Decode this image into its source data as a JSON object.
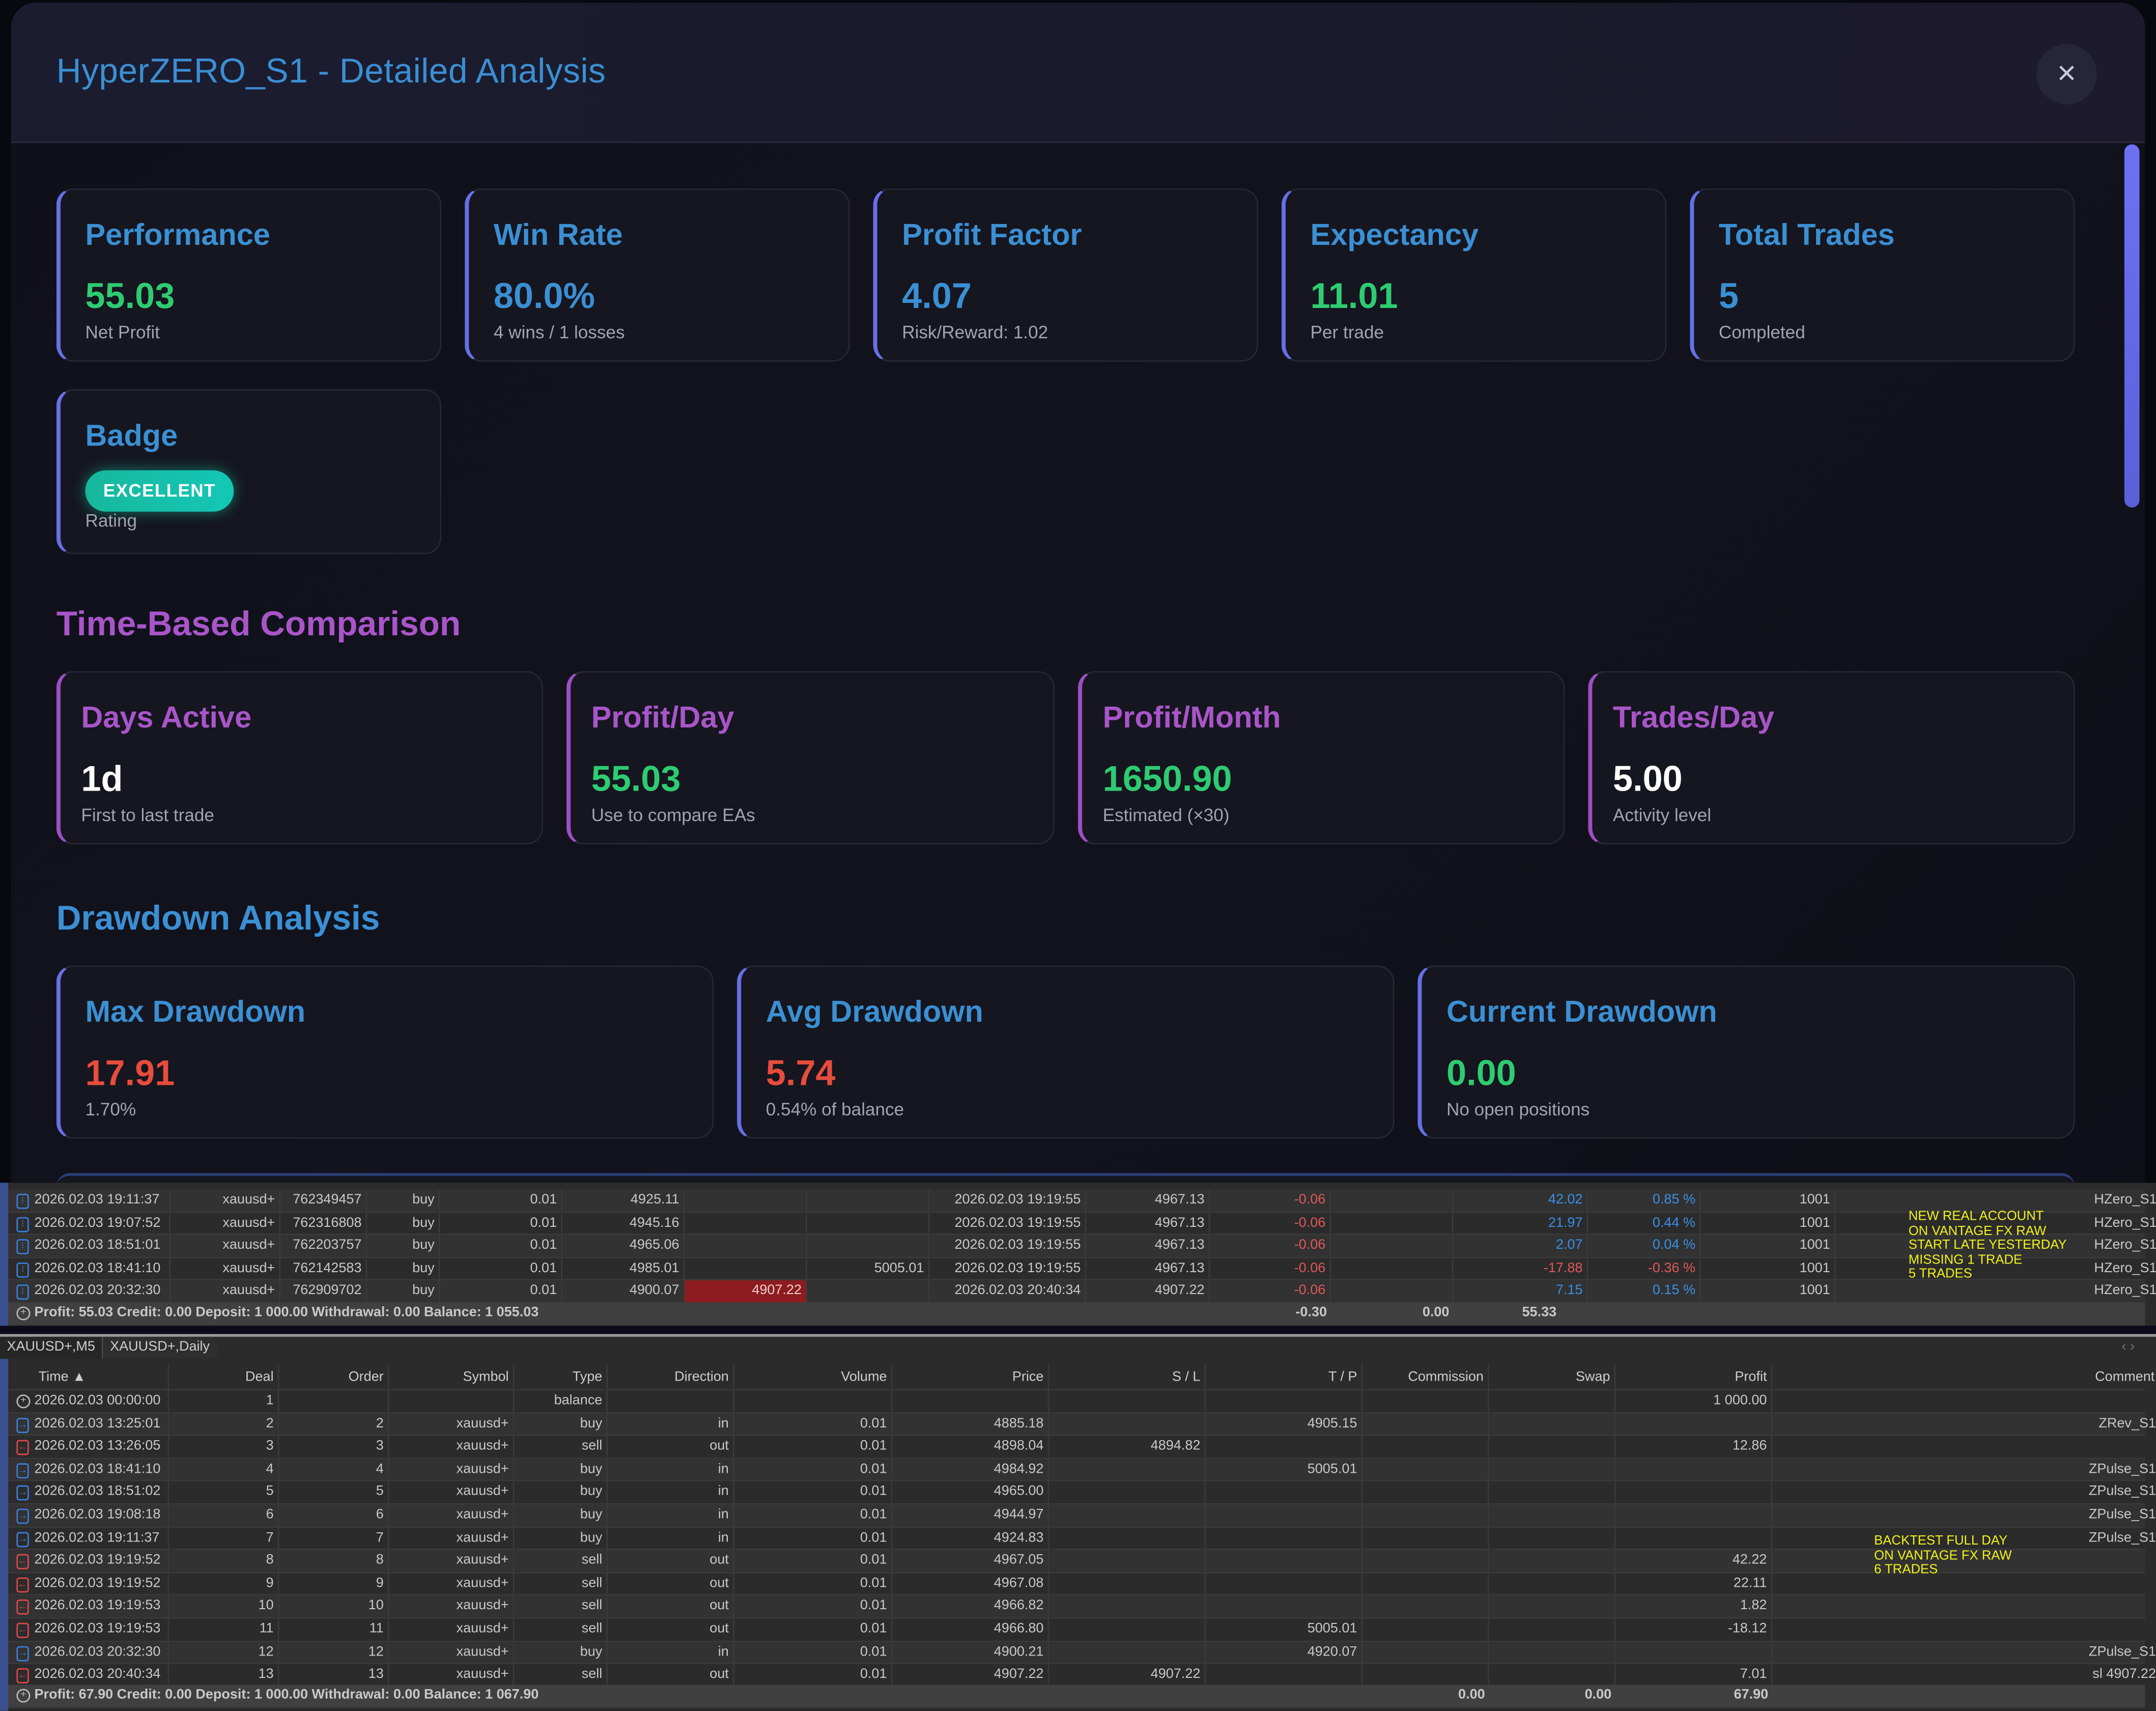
{
  "modal": {
    "title": "HyperZERO_S1 - Detailed Analysis",
    "close_icon": "×",
    "accent_color": "#3b8fd3",
    "section_color_time": "#a955c9",
    "summary_cards": [
      {
        "title": "Performance",
        "value": "55.03",
        "sub": "Net Profit"
      },
      {
        "title": "Win Rate",
        "value": "80.0%",
        "sub": "4 wins / 1 losses"
      },
      {
        "title": "Profit Factor",
        "value": "4.07",
        "sub": "Risk/Reward: 1.02"
      },
      {
        "title": "Expectancy",
        "value": "11.01",
        "sub": "Per trade"
      },
      {
        "title": "Total Trades",
        "value": "5",
        "sub": "Completed"
      }
    ],
    "badge_card": {
      "title": "Badge",
      "badge": "EXCELLENT",
      "sub": "Rating"
    },
    "time_section": {
      "title": "Time-Based Comparison",
      "cards": [
        {
          "title": "Days Active",
          "value": "1d",
          "sub": "First to last trade"
        },
        {
          "title": "Profit/Day",
          "value": "55.03",
          "sub": "Use to compare EAs"
        },
        {
          "title": "Profit/Month",
          "value": "1650.90",
          "sub": "Estimated (×30)"
        },
        {
          "title": "Trades/Day",
          "value": "5.00",
          "sub": "Activity level"
        }
      ]
    },
    "drawdown_section": {
      "title": "Drawdown Analysis",
      "cards": [
        {
          "title": "Max Drawdown",
          "value": "17.91",
          "sub": "1.70%"
        },
        {
          "title": "Avg Drawdown",
          "value": "5.74",
          "sub": "0.54% of balance"
        },
        {
          "title": "Current Drawdown",
          "value": "0.00",
          "sub": "No open positions"
        }
      ]
    }
  },
  "history_table": {
    "rows": [
      [
        "2026.02.03 19:11:37",
        "xauusd+",
        "762349457",
        "buy",
        "0.01",
        "4925.11",
        "",
        "",
        "2026.02.03 19:19:55",
        "4967.13",
        "-0.06",
        "",
        "42.02",
        "0.85 %",
        "1001",
        "HZero_S1"
      ],
      [
        "2026.02.03 19:07:52",
        "xauusd+",
        "762316808",
        "buy",
        "0.01",
        "4945.16",
        "",
        "",
        "2026.02.03 19:19:55",
        "4967.13",
        "-0.06",
        "",
        "21.97",
        "0.44 %",
        "1001",
        "HZero_S1"
      ],
      [
        "2026.02.03 18:51:01",
        "xauusd+",
        "762203757",
        "buy",
        "0.01",
        "4965.06",
        "",
        "",
        "2026.02.03 19:19:55",
        "4967.13",
        "-0.06",
        "",
        "2.07",
        "0.04 %",
        "1001",
        "HZero_S1"
      ],
      [
        "2026.02.03 18:41:10",
        "xauusd+",
        "762142583",
        "buy",
        "0.01",
        "4985.01",
        "",
        "5005.01",
        "2026.02.03 19:19:55",
        "4967.13",
        "-0.06",
        "",
        "-17.88",
        "-0.36 %",
        "1001",
        "HZero_S1"
      ],
      [
        "2026.02.03 20:32:30",
        "xauusd+",
        "762909702",
        "buy",
        "0.01",
        "4900.07",
        "4907.22",
        "",
        "2026.02.03 20:40:34",
        "4907.22",
        "-0.06",
        "",
        "7.15",
        "0.15 %",
        "1001",
        "HZero_S1"
      ]
    ],
    "summary": {
      "text": "Profit: 55.03  Credit: 0.00  Deposit: 1 000.00  Withdrawal: 0.00  Balance: 1 055.03",
      "commission": "-0.30",
      "swap": "0.00",
      "profit": "55.33"
    },
    "note": "NEW REAL ACCOUNT\nON VANTAGE FX RAW\nSTART LATE YESTERDAY\nMISSING 1 TRADE\n5 TRADES",
    "note_color": "#f2f21a"
  },
  "tabs": [
    {
      "label": "XAUUSD+,M5",
      "active": false
    },
    {
      "label": "XAUUSD+,Daily",
      "active": true
    }
  ],
  "deals_table": {
    "headers": [
      "Time ▲",
      "Deal",
      "Order",
      "Symbol",
      "Type",
      "Direction",
      "Volume",
      "Price",
      "S / L",
      "T / P",
      "Commission",
      "Swap",
      "Profit",
      "Comment"
    ],
    "rows": [
      {
        "kind": "balance",
        "cells": [
          "2026.02.03 00:00:00",
          "1",
          "",
          "",
          "balance",
          "",
          "",
          "",
          "",
          "",
          "",
          "",
          "1 000.00",
          ""
        ]
      },
      {
        "kind": "in",
        "cells": [
          "2026.02.03 13:25:01",
          "2",
          "2",
          "xauusd+",
          "buy",
          "in",
          "0.01",
          "4885.18",
          "",
          "4905.15",
          "",
          "",
          "",
          "ZRev_S1"
        ]
      },
      {
        "kind": "out",
        "cells": [
          "2026.02.03 13:26:05",
          "3",
          "3",
          "xauusd+",
          "sell",
          "out",
          "0.01",
          "4898.04",
          "4894.82",
          "",
          "",
          "",
          "12.86",
          ""
        ]
      },
      {
        "kind": "in",
        "cells": [
          "2026.02.03 18:41:10",
          "4",
          "4",
          "xauusd+",
          "buy",
          "in",
          "0.01",
          "4984.92",
          "",
          "5005.01",
          "",
          "",
          "",
          "ZPulse_S1"
        ]
      },
      {
        "kind": "in",
        "cells": [
          "2026.02.03 18:51:02",
          "5",
          "5",
          "xauusd+",
          "buy",
          "in",
          "0.01",
          "4965.00",
          "",
          "",
          "",
          "",
          "",
          "ZPulse_S1"
        ]
      },
      {
        "kind": "in",
        "cells": [
          "2026.02.03 19:08:18",
          "6",
          "6",
          "xauusd+",
          "buy",
          "in",
          "0.01",
          "4944.97",
          "",
          "",
          "",
          "",
          "",
          "ZPulse_S1"
        ]
      },
      {
        "kind": "in",
        "cells": [
          "2026.02.03 19:11:37",
          "7",
          "7",
          "xauusd+",
          "buy",
          "in",
          "0.01",
          "4924.83",
          "",
          "",
          "",
          "",
          "",
          "ZPulse_S1"
        ]
      },
      {
        "kind": "out",
        "cells": [
          "2026.02.03 19:19:52",
          "8",
          "8",
          "xauusd+",
          "sell",
          "out",
          "0.01",
          "4967.05",
          "",
          "",
          "",
          "",
          "42.22",
          ""
        ]
      },
      {
        "kind": "out",
        "cells": [
          "2026.02.03 19:19:52",
          "9",
          "9",
          "xauusd+",
          "sell",
          "out",
          "0.01",
          "4967.08",
          "",
          "",
          "",
          "",
          "22.11",
          ""
        ]
      },
      {
        "kind": "out",
        "cells": [
          "2026.02.03 19:19:53",
          "10",
          "10",
          "xauusd+",
          "sell",
          "out",
          "0.01",
          "4966.82",
          "",
          "",
          "",
          "",
          "1.82",
          ""
        ]
      },
      {
        "kind": "out",
        "cells": [
          "2026.02.03 19:19:53",
          "11",
          "11",
          "xauusd+",
          "sell",
          "out",
          "0.01",
          "4966.80",
          "",
          "5005.01",
          "",
          "",
          "-18.12",
          ""
        ]
      },
      {
        "kind": "in",
        "cells": [
          "2026.02.03 20:32:30",
          "12",
          "12",
          "xauusd+",
          "buy",
          "in",
          "0.01",
          "4900.21",
          "",
          "4920.07",
          "",
          "",
          "",
          "ZPulse_S1"
        ]
      },
      {
        "kind": "out",
        "cells": [
          "2026.02.03 20:40:34",
          "13",
          "13",
          "xauusd+",
          "sell",
          "out",
          "0.01",
          "4907.22",
          "4907.22",
          "",
          "",
          "",
          "7.01",
          "sl 4907.22"
        ]
      }
    ],
    "summary": {
      "text": "Profit: 67.90  Credit: 0.00  Deposit: 1 000.00  Withdrawal: 0.00  Balance: 1 067.90",
      "commission": "0.00",
      "swap": "0.00",
      "profit": "67.90"
    },
    "note": "BACKTEST FULL DAY\nON VANTAGE FX RAW\n6 TRADES"
  }
}
